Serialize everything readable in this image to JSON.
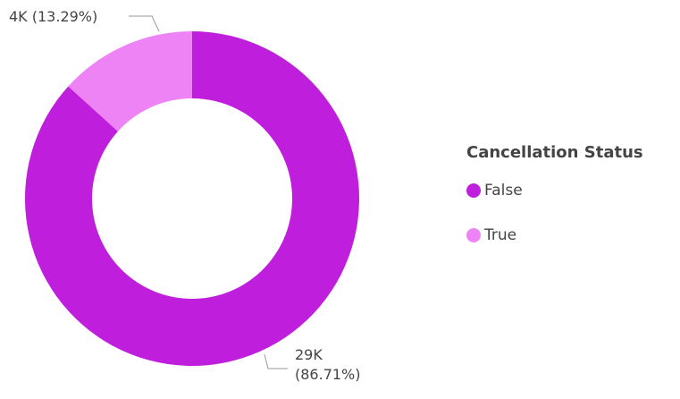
{
  "chart_data": {
    "type": "donut",
    "legend_title": "Cancellation Status",
    "categories": [
      "False",
      "True"
    ],
    "values": [
      86.71,
      13.29
    ],
    "value_labels": [
      "29K (86.71%)",
      "4K (13.29%)"
    ],
    "colors": [
      "#bf1fdc",
      "#ee83f5"
    ],
    "legend": "right"
  }
}
